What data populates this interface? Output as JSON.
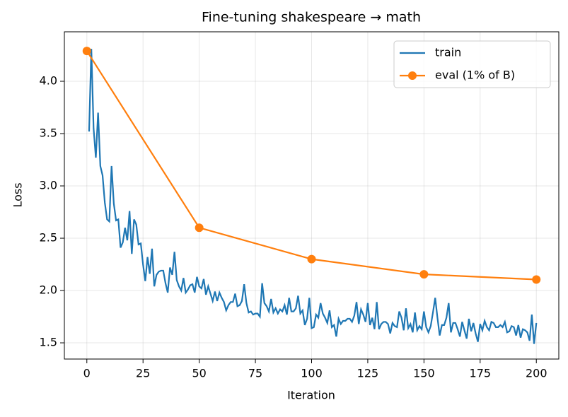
{
  "chart_data": {
    "type": "line",
    "title": "Fine-tuning shakespeare → math",
    "xlabel": "Iteration",
    "ylabel": "Loss",
    "xlim": [
      -10,
      210
    ],
    "ylim": [
      1.345,
      4.473
    ],
    "xticks": [
      0,
      25,
      50,
      75,
      100,
      125,
      150,
      175,
      200
    ],
    "yticks": [
      1.5,
      {
        "value": 2.0,
        "label": "2.0"
      },
      2.5,
      {
        "value": 3.0,
        "label": "3.0"
      },
      3.5,
      {
        "value": 4.0,
        "label": "4.0"
      }
    ],
    "grid": true,
    "legend": "upper right",
    "series": [
      {
        "name": "train",
        "color": "#1f77b4",
        "marker": false,
        "x": [
          1,
          2,
          3,
          4,
          5,
          6,
          7,
          8,
          9,
          10,
          11,
          12,
          13,
          14,
          15,
          16,
          17,
          18,
          19,
          20,
          21,
          22,
          23,
          24,
          25,
          26,
          27,
          28,
          29,
          30,
          31,
          32,
          33,
          34,
          35,
          36,
          37,
          38,
          39,
          40,
          41,
          42,
          43,
          44,
          45,
          46,
          47,
          48,
          49,
          50,
          51,
          52,
          53,
          54,
          55,
          56,
          57,
          58,
          59,
          60,
          61,
          62,
          63,
          64,
          65,
          66,
          67,
          68,
          69,
          70,
          71,
          72,
          73,
          74,
          75,
          76,
          77,
          78,
          79,
          80,
          81,
          82,
          83,
          84,
          85,
          86,
          87,
          88,
          89,
          90,
          91,
          92,
          93,
          94,
          95,
          96,
          97,
          98,
          99,
          100,
          101,
          102,
          103,
          104,
          105,
          106,
          107,
          108,
          109,
          110,
          111,
          112,
          113,
          114,
          115,
          116,
          117,
          118,
          119,
          120,
          121,
          122,
          123,
          124,
          125,
          126,
          127,
          128,
          129,
          130,
          131,
          132,
          133,
          134,
          135,
          136,
          137,
          138,
          139,
          140,
          141,
          142,
          143,
          144,
          145,
          146,
          147,
          148,
          149,
          150,
          151,
          152,
          153,
          154,
          155,
          156,
          157,
          158,
          159,
          160,
          161,
          162,
          163,
          164,
          165,
          166,
          167,
          168,
          169,
          170,
          171,
          172,
          173,
          174,
          175,
          176,
          177,
          178,
          179,
          180,
          181,
          182,
          183,
          184,
          185,
          186,
          187,
          188,
          189,
          190,
          191,
          192,
          193,
          194,
          195,
          196,
          197,
          198,
          199,
          200
        ],
        "values": [
          3.52,
          4.31,
          3.55,
          3.27,
          3.7,
          3.19,
          3.1,
          2.84,
          2.68,
          2.66,
          3.19,
          2.83,
          2.67,
          2.68,
          2.41,
          2.46,
          2.6,
          2.48,
          2.76,
          2.35,
          2.68,
          2.63,
          2.44,
          2.45,
          2.25,
          2.09,
          2.32,
          2.16,
          2.4,
          2.04,
          2.15,
          2.18,
          2.19,
          2.19,
          2.07,
          1.98,
          2.22,
          2.15,
          2.37,
          2.1,
          2.04,
          2.0,
          2.12,
          1.98,
          2.01,
          2.05,
          2.06,
          1.98,
          2.13,
          2.04,
          2.02,
          2.11,
          1.96,
          2.04,
          1.97,
          1.9,
          1.99,
          1.9,
          1.98,
          1.93,
          1.89,
          1.81,
          1.86,
          1.89,
          1.89,
          1.97,
          1.85,
          1.86,
          1.9,
          2.06,
          1.88,
          1.79,
          1.8,
          1.77,
          1.78,
          1.78,
          1.75,
          2.07,
          1.88,
          1.85,
          1.8,
          1.92,
          1.79,
          1.83,
          1.78,
          1.82,
          1.8,
          1.86,
          1.77,
          1.93,
          1.8,
          1.8,
          1.83,
          1.95,
          1.78,
          1.81,
          1.67,
          1.73,
          1.93,
          1.64,
          1.65,
          1.77,
          1.74,
          1.88,
          1.78,
          1.74,
          1.69,
          1.81,
          1.65,
          1.67,
          1.56,
          1.73,
          1.68,
          1.71,
          1.71,
          1.73,
          1.73,
          1.7,
          1.76,
          1.89,
          1.68,
          1.82,
          1.77,
          1.7,
          1.88,
          1.67,
          1.74,
          1.63,
          1.89,
          1.63,
          1.68,
          1.7,
          1.7,
          1.68,
          1.59,
          1.69,
          1.66,
          1.65,
          1.8,
          1.74,
          1.62,
          1.83,
          1.64,
          1.68,
          1.6,
          1.79,
          1.62,
          1.66,
          1.63,
          1.8,
          1.65,
          1.6,
          1.66,
          1.79,
          1.93,
          1.74,
          1.57,
          1.67,
          1.67,
          1.74,
          1.88,
          1.6,
          1.69,
          1.69,
          1.63,
          1.56,
          1.7,
          1.62,
          1.54,
          1.73,
          1.61,
          1.69,
          1.59,
          1.51,
          1.68,
          1.62,
          1.71,
          1.65,
          1.62,
          1.7,
          1.69,
          1.65,
          1.65,
          1.67,
          1.65,
          1.7,
          1.6,
          1.61,
          1.66,
          1.65,
          1.57,
          1.67,
          1.55,
          1.63,
          1.62,
          1.6,
          1.52,
          1.77,
          1.49,
          1.69
        ]
      },
      {
        "name": "eval (1% of B)",
        "color": "#ff7f0e",
        "marker": true,
        "x": [
          0,
          50,
          100,
          150,
          200
        ],
        "values": [
          4.29,
          2.6,
          2.3,
          2.155,
          2.105
        ]
      }
    ]
  }
}
